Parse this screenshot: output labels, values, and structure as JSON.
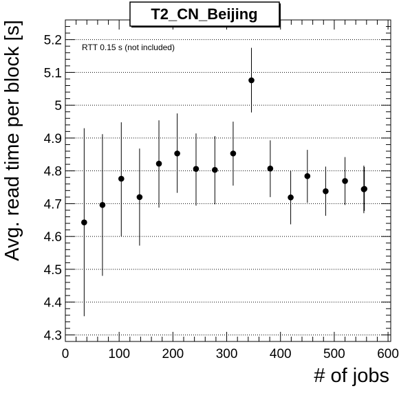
{
  "chart_data": {
    "type": "scatter",
    "title": "T2_CN_Beijing",
    "xlabel": "# of jobs",
    "ylabel": "Avg. read time per block [s]",
    "annotation": "RTT 0.15 s (not included)",
    "xlim": [
      0,
      605
    ],
    "ylim": [
      4.28,
      5.26
    ],
    "xticks": [
      0,
      100,
      200,
      300,
      400,
      500,
      600
    ],
    "xtick_labels": [
      "0",
      "100",
      "200",
      "300",
      "400",
      "500",
      "600"
    ],
    "yticks": [
      4.3,
      4.4,
      4.5,
      4.6,
      4.7,
      4.8,
      4.9,
      5.0,
      5.1,
      5.2
    ],
    "ytick_labels": [
      "4.3",
      "4.4",
      "4.5",
      "4.6",
      "4.7",
      "4.8",
      "4.9",
      "5",
      "5.1",
      "5.2"
    ],
    "grid": "horizontal dotted",
    "points": [
      {
        "x": 35,
        "y": 4.643,
        "ylow": 4.357,
        "yhigh": 4.93
      },
      {
        "x": 69,
        "y": 4.696,
        "ylow": 4.48,
        "yhigh": 4.912
      },
      {
        "x": 104,
        "y": 4.776,
        "ylow": 4.6,
        "yhigh": 4.948
      },
      {
        "x": 138,
        "y": 4.72,
        "ylow": 4.572,
        "yhigh": 4.868
      },
      {
        "x": 174,
        "y": 4.822,
        "ylow": 4.688,
        "yhigh": 4.954
      },
      {
        "x": 208,
        "y": 4.853,
        "ylow": 4.733,
        "yhigh": 4.975
      },
      {
        "x": 243,
        "y": 4.806,
        "ylow": 4.694,
        "yhigh": 4.914
      },
      {
        "x": 278,
        "y": 4.803,
        "ylow": 4.698,
        "yhigh": 4.906
      },
      {
        "x": 312,
        "y": 4.853,
        "ylow": 4.755,
        "yhigh": 4.95
      },
      {
        "x": 346,
        "y": 5.076,
        "ylow": 4.978,
        "yhigh": 5.175
      },
      {
        "x": 381,
        "y": 4.807,
        "ylow": 4.72,
        "yhigh": 4.893
      },
      {
        "x": 419,
        "y": 4.719,
        "ylow": 4.637,
        "yhigh": 4.801
      },
      {
        "x": 450,
        "y": 4.784,
        "ylow": 4.703,
        "yhigh": 4.864
      },
      {
        "x": 484,
        "y": 4.738,
        "ylow": 4.663,
        "yhigh": 4.813
      },
      {
        "x": 520,
        "y": 4.769,
        "ylow": 4.696,
        "yhigh": 4.842
      },
      {
        "x": 555,
        "y": 4.744,
        "ylow": 4.671,
        "yhigh": 4.816
      },
      {
        "x": 556,
        "y": 4.745,
        "ylow": 4.678,
        "yhigh": 4.812
      }
    ],
    "marker_color": "#000000",
    "line_color": "#000000"
  }
}
